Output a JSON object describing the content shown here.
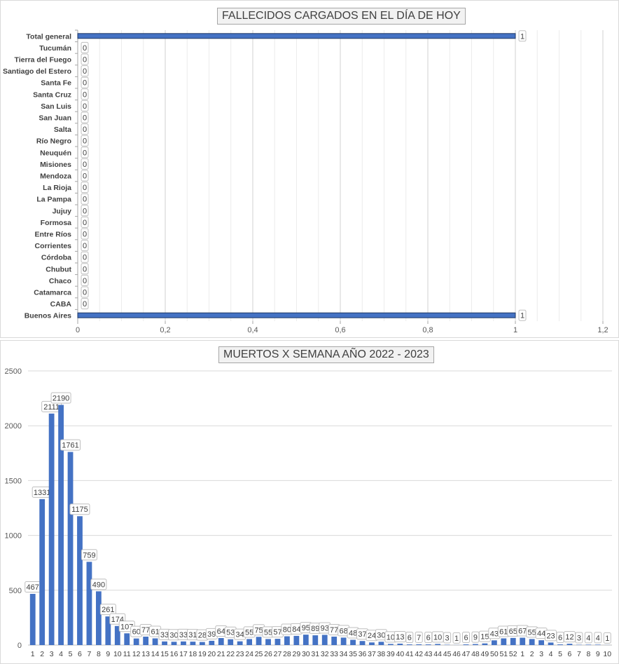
{
  "charts": {
    "fallecidos": {
      "type": "bar",
      "orientation": "horizontal",
      "title": "FALLECIDOS CARGADOS EN EL DÍA DE HOY",
      "categories": [
        "Total general",
        "Tucumán",
        "Tierra del Fuego",
        "Santiago del Estero",
        "Santa Fe",
        "Santa Cruz",
        "San Luis",
        "San Juan",
        "Salta",
        "Río Negro",
        "Neuquén",
        "Misiones",
        "Mendoza",
        "La Rioja",
        "La Pampa",
        "Jujuy",
        "Formosa",
        "Entre Ríos",
        "Corrientes",
        "Córdoba",
        "Chubut",
        "Chaco",
        "Catamarca",
        "CABA",
        "Buenos Aires"
      ],
      "values": [
        1,
        0,
        0,
        0,
        0,
        0,
        0,
        0,
        0,
        0,
        0,
        0,
        0,
        0,
        0,
        0,
        0,
        0,
        0,
        0,
        0,
        0,
        0,
        0,
        1
      ],
      "xlim": [
        0,
        1.2
      ],
      "xticks": [
        0,
        0.2,
        0.4,
        0.6,
        0.8,
        1,
        1.2
      ],
      "xtick_labels": [
        "0",
        "0,2",
        "0,4",
        "0,6",
        "0,8",
        "1",
        "1,2"
      ],
      "grid": true,
      "bar_color": "#4472c4",
      "bar_edge": "#1f3864"
    },
    "muertos": {
      "type": "bar",
      "title": "MUERTOS X SEMANA AÑO 2022 - 2023",
      "categories": [
        "1",
        "2",
        "3",
        "4",
        "5",
        "6",
        "7",
        "8",
        "9",
        "10",
        "11",
        "12",
        "13",
        "14",
        "15",
        "16",
        "17",
        "18",
        "19",
        "20",
        "21",
        "22",
        "23",
        "24",
        "25",
        "26",
        "27",
        "28",
        "29",
        "30",
        "31",
        "32",
        "33",
        "34",
        "35",
        "36",
        "37",
        "38",
        "39",
        "40",
        "41",
        "42",
        "43",
        "44",
        "45",
        "46",
        "47",
        "48",
        "49",
        "50",
        "51",
        "52",
        "1",
        "2",
        "3",
        "4",
        "5",
        "6",
        "7",
        "8",
        "9",
        "10"
      ],
      "values": [
        467,
        1331,
        2111,
        2190,
        1761,
        1175,
        759,
        490,
        261,
        174,
        107,
        60,
        77,
        61,
        33,
        30,
        33,
        31,
        28,
        39,
        64,
        53,
        34,
        55,
        75,
        55,
        57,
        80,
        84,
        95,
        89,
        93,
        77,
        68,
        48,
        37,
        24,
        30,
        10,
        13,
        6,
        7,
        6,
        10,
        3,
        1,
        6,
        9,
        15,
        43,
        61,
        65,
        67,
        55,
        44,
        23,
        6,
        12,
        3,
        4,
        4,
        1
      ],
      "ylim": [
        0,
        2500
      ],
      "yticks": [
        0,
        500,
        1000,
        1500,
        2000,
        2500
      ],
      "grid": true,
      "bar_color": "#4472c4"
    }
  },
  "chart_data": [
    {
      "type": "bar",
      "title": "FALLECIDOS CARGADOS EN EL DÍA DE HOY",
      "categories": [
        "Total general",
        "Tucumán",
        "Tierra del Fuego",
        "Santiago del Estero",
        "Santa Fe",
        "Santa Cruz",
        "San Luis",
        "San Juan",
        "Salta",
        "Río Negro",
        "Neuquén",
        "Misiones",
        "Mendoza",
        "La Rioja",
        "La Pampa",
        "Jujuy",
        "Formosa",
        "Entre Ríos",
        "Corrientes",
        "Córdoba",
        "Chubut",
        "Chaco",
        "Catamarca",
        "CABA",
        "Buenos Aires"
      ],
      "values": [
        1,
        0,
        0,
        0,
        0,
        0,
        0,
        0,
        0,
        0,
        0,
        0,
        0,
        0,
        0,
        0,
        0,
        0,
        0,
        0,
        0,
        0,
        0,
        0,
        1
      ],
      "xlim": [
        0,
        1.2
      ]
    },
    {
      "type": "bar",
      "title": "MUERTOS X SEMANA AÑO 2022 - 2023",
      "categories": [
        "1",
        "2",
        "3",
        "4",
        "5",
        "6",
        "7",
        "8",
        "9",
        "10",
        "11",
        "12",
        "13",
        "14",
        "15",
        "16",
        "17",
        "18",
        "19",
        "20",
        "21",
        "22",
        "23",
        "24",
        "25",
        "26",
        "27",
        "28",
        "29",
        "30",
        "31",
        "32",
        "33",
        "34",
        "35",
        "36",
        "37",
        "38",
        "39",
        "40",
        "41",
        "42",
        "43",
        "44",
        "45",
        "46",
        "47",
        "48",
        "49",
        "50",
        "51",
        "52",
        "1",
        "2",
        "3",
        "4",
        "5",
        "6",
        "7",
        "8",
        "9",
        "10"
      ],
      "values": [
        467,
        1331,
        2111,
        2190,
        1761,
        1175,
        759,
        490,
        261,
        174,
        107,
        60,
        77,
        61,
        33,
        30,
        33,
        31,
        28,
        39,
        64,
        53,
        34,
        55,
        75,
        55,
        57,
        80,
        84,
        95,
        89,
        93,
        77,
        68,
        48,
        37,
        24,
        30,
        10,
        13,
        6,
        7,
        6,
        10,
        3,
        1,
        6,
        9,
        15,
        43,
        61,
        65,
        67,
        55,
        44,
        23,
        6,
        12,
        3,
        4,
        4,
        1
      ],
      "ylim": [
        0,
        2500
      ]
    }
  ]
}
